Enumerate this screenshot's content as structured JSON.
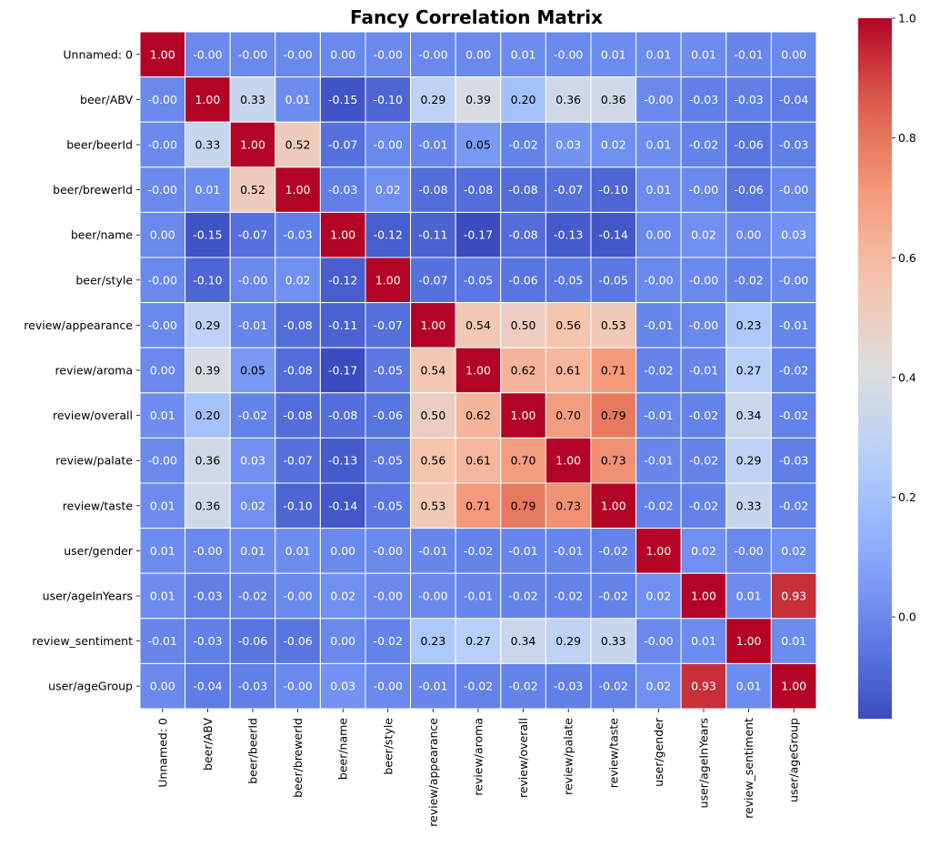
{
  "chart_data": {
    "type": "heatmap",
    "title": "Fancy Correlation Matrix",
    "xlabel": "",
    "ylabel": "",
    "labels": [
      "Unnamed: 0",
      "beer/ABV",
      "beer/beerId",
      "beer/brewerId",
      "beer/name",
      "beer/style",
      "review/appearance",
      "review/aroma",
      "review/overall",
      "review/palate",
      "review/taste",
      "user/gender",
      "user/ageInYears",
      "review_sentiment",
      "user/ageGroup"
    ],
    "values": [
      [
        1.0,
        -0.0,
        -0.0,
        -0.0,
        0.0,
        -0.0,
        -0.0,
        0.0,
        0.01,
        -0.0,
        0.01,
        0.01,
        0.01,
        -0.01,
        0.0
      ],
      [
        -0.0,
        1.0,
        0.33,
        0.01,
        -0.15,
        -0.1,
        0.29,
        0.39,
        0.2,
        0.36,
        0.36,
        -0.0,
        -0.03,
        -0.03,
        -0.04
      ],
      [
        -0.0,
        0.33,
        1.0,
        0.52,
        -0.07,
        -0.0,
        -0.01,
        0.05,
        -0.02,
        0.03,
        0.02,
        0.01,
        -0.02,
        -0.06,
        -0.03
      ],
      [
        -0.0,
        0.01,
        0.52,
        1.0,
        -0.03,
        0.02,
        -0.08,
        -0.08,
        -0.08,
        -0.07,
        -0.1,
        0.01,
        -0.0,
        -0.06,
        -0.0
      ],
      [
        0.0,
        -0.15,
        -0.07,
        -0.03,
        1.0,
        -0.12,
        -0.11,
        -0.17,
        -0.08,
        -0.13,
        -0.14,
        0.0,
        0.02,
        0.0,
        0.03
      ],
      [
        -0.0,
        -0.1,
        -0.0,
        0.02,
        -0.12,
        1.0,
        -0.07,
        -0.05,
        -0.06,
        -0.05,
        -0.05,
        -0.0,
        -0.0,
        -0.02,
        -0.0
      ],
      [
        -0.0,
        0.29,
        -0.01,
        -0.08,
        -0.11,
        -0.07,
        1.0,
        0.54,
        0.5,
        0.56,
        0.53,
        -0.01,
        -0.0,
        0.23,
        -0.01
      ],
      [
        0.0,
        0.39,
        0.05,
        -0.08,
        -0.17,
        -0.05,
        0.54,
        1.0,
        0.62,
        0.61,
        0.71,
        -0.02,
        -0.01,
        0.27,
        -0.02
      ],
      [
        0.01,
        0.2,
        -0.02,
        -0.08,
        -0.08,
        -0.06,
        0.5,
        0.62,
        1.0,
        0.7,
        0.79,
        -0.01,
        -0.02,
        0.34,
        -0.02
      ],
      [
        -0.0,
        0.36,
        0.03,
        -0.07,
        -0.13,
        -0.05,
        0.56,
        0.61,
        0.7,
        1.0,
        0.73,
        -0.01,
        -0.02,
        0.29,
        -0.03
      ],
      [
        0.01,
        0.36,
        0.02,
        -0.1,
        -0.14,
        -0.05,
        0.53,
        0.71,
        0.79,
        0.73,
        1.0,
        -0.02,
        -0.02,
        0.33,
        -0.02
      ],
      [
        0.01,
        -0.0,
        0.01,
        0.01,
        0.0,
        -0.0,
        -0.01,
        -0.02,
        -0.01,
        -0.01,
        -0.02,
        1.0,
        0.02,
        -0.0,
        0.02
      ],
      [
        0.01,
        -0.03,
        -0.02,
        -0.0,
        0.02,
        -0.0,
        -0.0,
        -0.01,
        -0.02,
        -0.02,
        -0.02,
        0.02,
        1.0,
        0.01,
        0.93
      ],
      [
        -0.01,
        -0.03,
        -0.06,
        -0.06,
        0.0,
        -0.02,
        0.23,
        0.27,
        0.34,
        0.29,
        0.33,
        -0.0,
        0.01,
        1.0,
        0.01
      ],
      [
        0.0,
        -0.04,
        -0.03,
        -0.0,
        0.03,
        -0.0,
        -0.01,
        -0.02,
        -0.02,
        -0.03,
        -0.02,
        0.02,
        0.93,
        0.01,
        1.0
      ]
    ],
    "value_range": [
      -0.17,
      1.0
    ],
    "colormap": "coolwarm",
    "colorbar": {
      "ticks": [
        0.0,
        0.2,
        0.4,
        0.6,
        0.8,
        1.0
      ],
      "tick_labels": [
        "0.0",
        "0.2",
        "0.4",
        "0.6",
        "0.8",
        "1.0"
      ],
      "placement": "right"
    },
    "colors": {
      "low": "#3b4cc0",
      "mid": "#dddddd",
      "high": "#b40426",
      "grid_line": "#ffffff",
      "text_dark": "#000000",
      "text_light": "#ffffff"
    }
  }
}
